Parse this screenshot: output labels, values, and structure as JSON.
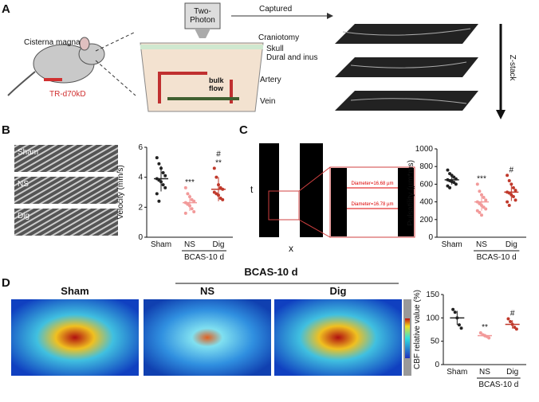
{
  "figure": {
    "panels": [
      "A",
      "B",
      "C",
      "D"
    ],
    "a": {
      "two_photon": [
        "Two-",
        "Photon"
      ],
      "captured": "Captured",
      "cisterna": "Cisterna magna",
      "tracer": "TR-d70kD",
      "craniotomy": "Craniotomy",
      "skull": "Skull",
      "dural": "Dural and inus",
      "artery": "Artery",
      "bulk": [
        "bulk",
        "flow"
      ],
      "vein": "Vein",
      "zstack": "Z-stack"
    },
    "b": {
      "images": [
        "Sham",
        "NS",
        "Dig"
      ]
    },
    "c": {
      "t": "t",
      "x": "x",
      "diam1": "Diameter=16.68 µm",
      "diam2": "Diameter=16.78 µm"
    },
    "d": {
      "images": [
        "Sham",
        "NS",
        "Dig"
      ],
      "group": "BCAS-10 d"
    }
  },
  "chart_data": [
    {
      "type": "dotplot",
      "ylabel": "Velocity (mm/s)",
      "categories": [
        "Sham",
        "NS",
        "Dig"
      ],
      "group_label": "BCAS-10 d",
      "colors": [
        "#222222",
        "#f29a9a",
        "#c0392b"
      ],
      "points": [
        [
          5.3,
          4.9,
          4.6,
          4.3,
          4.1,
          3.9,
          3.8,
          3.7,
          3.5,
          3.3,
          2.9,
          2.4
        ],
        [
          3.3,
          2.9,
          2.7,
          2.5,
          2.4,
          2.3,
          2.2,
          2.1,
          1.9,
          1.7,
          1.6
        ],
        [
          4.6,
          4.0,
          3.5,
          3.3,
          3.2,
          3.0,
          2.9,
          2.8,
          2.6,
          2.5
        ]
      ],
      "means": [
        3.9,
        2.3,
        3.2
      ],
      "sd": [
        0.85,
        0.55,
        0.8
      ],
      "significance": [
        null,
        "***",
        "**"
      ],
      "significance_vs_ns": [
        null,
        null,
        "#"
      ],
      "ylim": [
        0,
        6
      ],
      "yticks": [
        0,
        2,
        4,
        6
      ]
    },
    {
      "type": "dotplot",
      "ylabel": "Pulsatility (µm*ms)",
      "categories": [
        "Sham",
        "NS",
        "Dig"
      ],
      "group_label": "BCAS-10 d",
      "colors": [
        "#222222",
        "#f29a9a",
        "#c0392b"
      ],
      "points": [
        [
          760,
          720,
          700,
          680,
          660,
          650,
          640,
          630,
          620,
          600,
          580,
          560
        ],
        [
          600,
          520,
          480,
          450,
          420,
          400,
          380,
          360,
          340,
          320,
          300,
          280,
          250
        ],
        [
          700,
          640,
          600,
          560,
          530,
          510,
          500,
          480,
          460,
          420,
          400,
          360
        ]
      ],
      "means": [
        650,
        400,
        510
      ],
      "sd": [
        55,
        100,
        100
      ],
      "significance": [
        null,
        "***",
        null
      ],
      "significance_vs_ns": [
        null,
        null,
        "#"
      ],
      "ylim": [
        0,
        1000
      ],
      "yticks": [
        0,
        200,
        400,
        600,
        800,
        1000
      ]
    },
    {
      "type": "dotplot",
      "ylabel": "CBF relative value (%)",
      "categories": [
        "Sham",
        "NS",
        "Dig"
      ],
      "group_label": "BCAS-10 d",
      "colors": [
        "#222222",
        "#f29a9a",
        "#c0392b"
      ],
      "points": [
        [
          118,
          112,
          100,
          85,
          78
        ],
        [
          68,
          64,
          62,
          60,
          57
        ],
        [
          98,
          92,
          86,
          80,
          76
        ]
      ],
      "means": [
        100,
        62,
        86
      ],
      "sd": [
        15,
        4,
        9
      ],
      "significance": [
        null,
        "**",
        null
      ],
      "significance_vs_ns": [
        null,
        null,
        "#"
      ],
      "ylim": [
        0,
        150
      ],
      "yticks": [
        0,
        50,
        100,
        150
      ]
    }
  ]
}
